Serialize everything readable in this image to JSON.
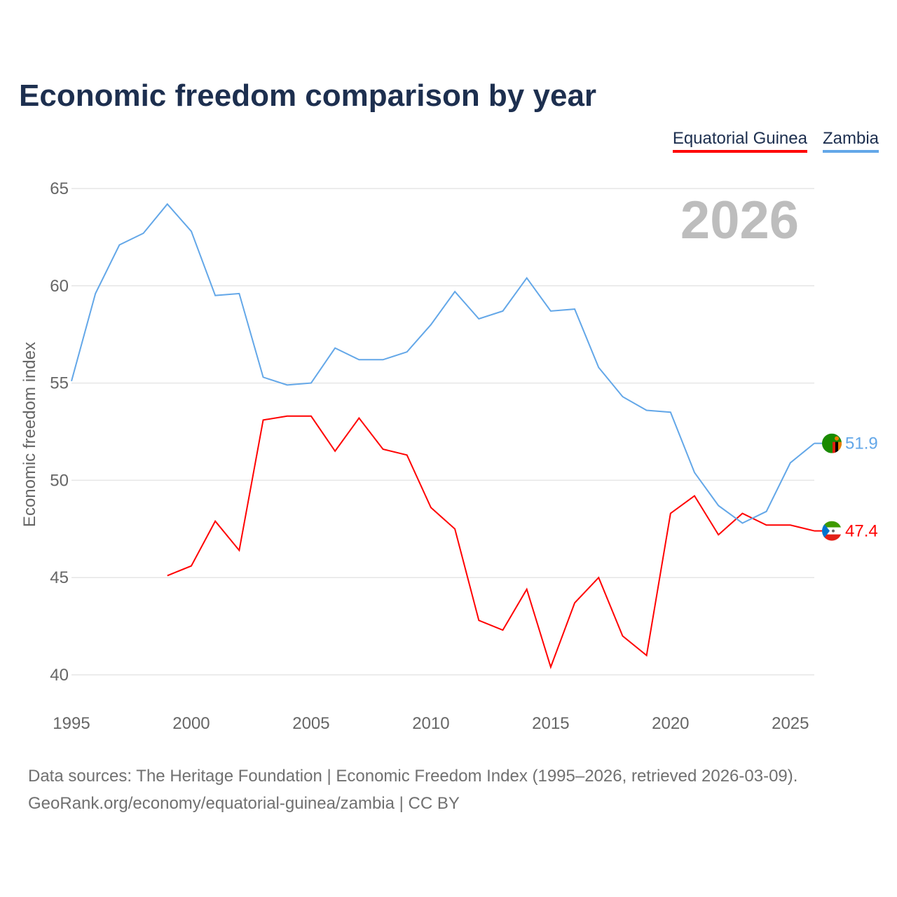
{
  "title": "Economic freedom comparison by year",
  "legend": [
    "Equatorial Guinea",
    "Zambia"
  ],
  "year_watermark": "2026",
  "footer": {
    "line1": "Data sources: The Heritage Foundation | Economic Freedom Index (1995–2026, retrieved 2026-03-09).",
    "line2": "GeoRank.org/economy/equatorial-guinea/zambia | CC BY"
  },
  "chart_data": {
    "type": "line",
    "title": "Economic freedom comparison by year",
    "xlabel": "",
    "ylabel": "Economic freedom index",
    "xlim": [
      1995,
      2026
    ],
    "ylim": [
      40,
      65
    ],
    "xticks": [
      1995,
      2000,
      2005,
      2010,
      2015,
      2020,
      2025
    ],
    "yticks": [
      40,
      45,
      50,
      55,
      60,
      65
    ],
    "grid": true,
    "legend_position": "top-right",
    "series": [
      {
        "name": "Equatorial Guinea",
        "color": "#ff0000",
        "end_label": "47.4",
        "x": [
          1999,
          2000,
          2001,
          2002,
          2003,
          2004,
          2005,
          2006,
          2007,
          2008,
          2009,
          2010,
          2011,
          2012,
          2013,
          2014,
          2015,
          2016,
          2017,
          2018,
          2019,
          2020,
          2021,
          2022,
          2023,
          2024,
          2025,
          2026
        ],
        "values": [
          45.1,
          45.6,
          47.9,
          46.4,
          53.1,
          53.3,
          53.3,
          51.5,
          53.2,
          51.6,
          51.3,
          48.6,
          47.5,
          42.8,
          42.3,
          44.4,
          40.4,
          43.7,
          45.0,
          42.0,
          41.0,
          48.3,
          49.2,
          47.2,
          48.3,
          47.7,
          47.7,
          47.4
        ]
      },
      {
        "name": "Zambia",
        "color": "#63a7e8",
        "end_label": "51.9",
        "x": [
          1995,
          1996,
          1997,
          1998,
          1999,
          2000,
          2001,
          2002,
          2003,
          2004,
          2005,
          2006,
          2007,
          2008,
          2009,
          2010,
          2011,
          2012,
          2013,
          2014,
          2015,
          2016,
          2017,
          2018,
          2019,
          2020,
          2021,
          2022,
          2023,
          2024,
          2025,
          2026
        ],
        "values": [
          55.1,
          59.6,
          62.1,
          62.7,
          64.2,
          62.8,
          59.5,
          59.6,
          55.3,
          54.9,
          55.0,
          56.8,
          56.2,
          56.2,
          56.6,
          58.0,
          59.7,
          58.3,
          58.7,
          60.4,
          58.7,
          58.8,
          55.8,
          54.3,
          53.6,
          53.5,
          50.4,
          48.7,
          47.8,
          48.4,
          50.9,
          51.9
        ]
      }
    ]
  }
}
